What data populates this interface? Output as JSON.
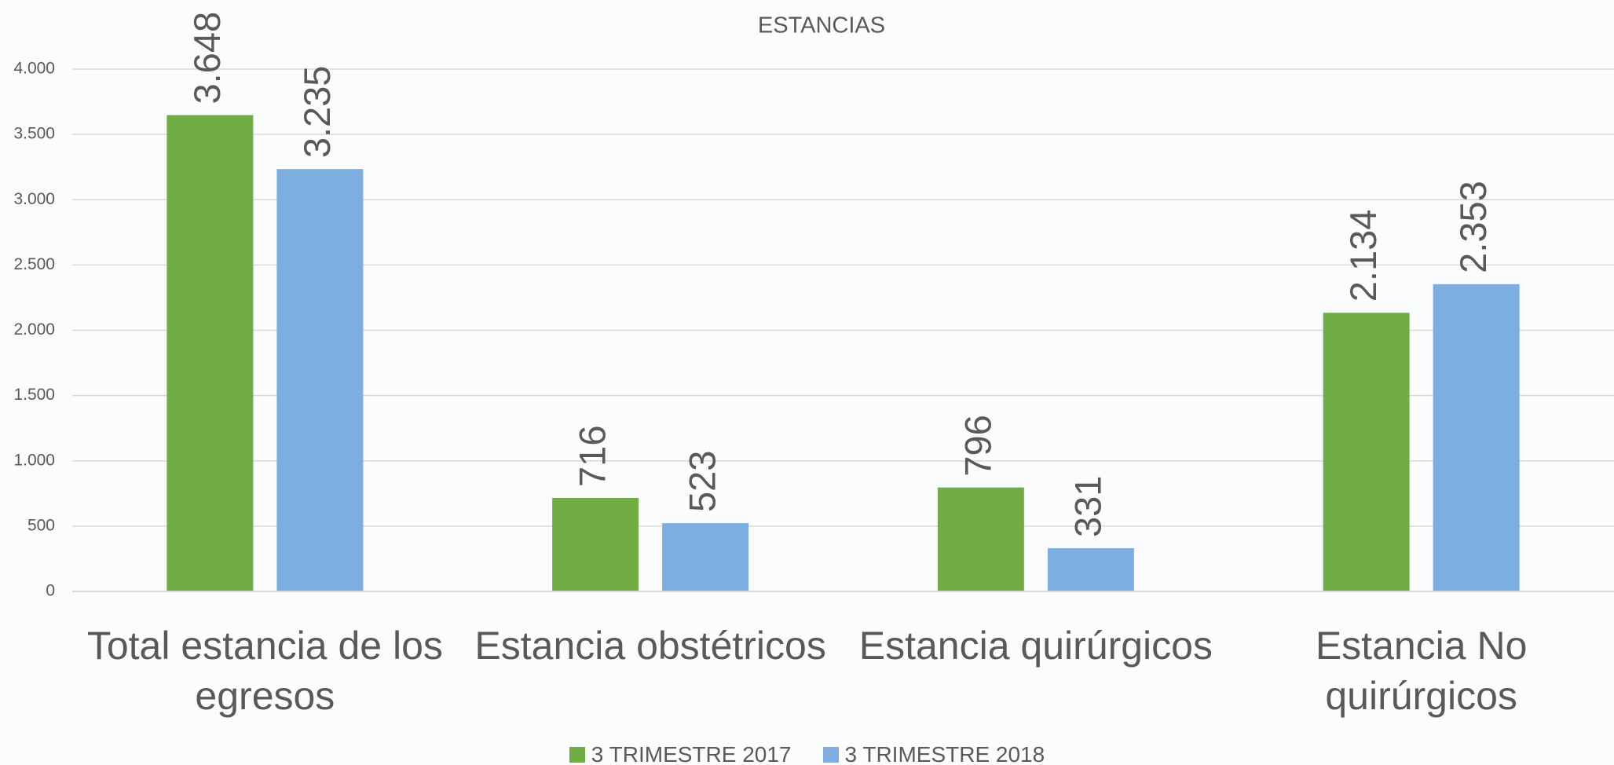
{
  "chart_data": {
    "type": "bar",
    "title": "ESTANCIAS",
    "categories": [
      "Total estancia de los egresos",
      "Estancia obstétricos",
      "Estancia quirúrgicos",
      "Estancia No quirúrgicos"
    ],
    "series": [
      {
        "name": "3 TRIMESTRE 2017",
        "color": "#70ad47",
        "values": [
          3648,
          716,
          796,
          2134
        ],
        "value_labels": [
          "3.648",
          "716",
          "796",
          "2.134"
        ]
      },
      {
        "name": "3 TRIMESTRE 2018",
        "color": "#7cafdf",
        "values": [
          3235,
          523,
          331,
          2353
        ],
        "value_labels": [
          "3.235",
          "523",
          "331",
          "2.353"
        ]
      }
    ],
    "ylim": [
      0,
      4000
    ],
    "yticks": [
      0,
      500,
      {
        "value": 1000,
        "label": "1.000"
      },
      {
        "value": 1500,
        "label": "1.500"
      },
      {
        "value": 2000,
        "label": "2.000"
      },
      {
        "value": 2500,
        "label": "2.500"
      },
      {
        "value": 3000,
        "label": "3.000"
      },
      {
        "value": 3500,
        "label": "3.500"
      },
      {
        "value": 4000,
        "label": "4.000"
      }
    ],
    "grid": true,
    "legend": "bottom"
  }
}
